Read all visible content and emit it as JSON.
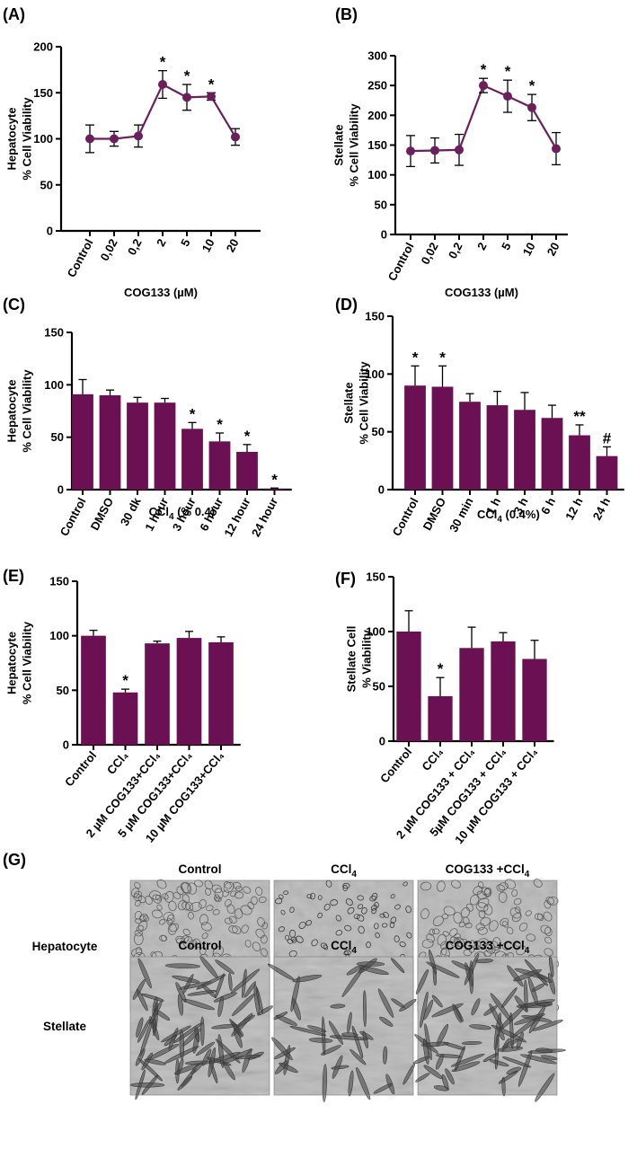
{
  "colors": {
    "bar": "#6b1052",
    "line": "#6b1f5b"
  },
  "chart_data": [
    {
      "id": "A",
      "type": "line",
      "panel_label": "(A)",
      "title": "",
      "ylabel_lines": [
        "Hepatocyte",
        "% Cell Viability"
      ],
      "xlabel": "COG133 (µM)",
      "categories": [
        "Control",
        "0,02",
        "0,2",
        "2",
        "5",
        "10",
        "20"
      ],
      "values": [
        100,
        100,
        103,
        159,
        145,
        146,
        102
      ],
      "errors": [
        15,
        8,
        12,
        15,
        14,
        4,
        9
      ],
      "significance": [
        "",
        "",
        "",
        "*",
        "*",
        "*",
        ""
      ],
      "ylim": [
        0,
        200
      ],
      "yticks": [
        "0",
        "50",
        "100",
        "150",
        "200"
      ]
    },
    {
      "id": "B",
      "type": "line",
      "panel_label": "(B)",
      "title": "",
      "ylabel_lines": [
        "Stellate",
        "% Cell Viability"
      ],
      "xlabel": "COG133 (µM)",
      "categories": [
        "Control",
        "0,02",
        "0,2",
        "2",
        "5",
        "10",
        "20"
      ],
      "values": [
        140,
        141,
        142,
        250,
        232,
        213,
        144
      ],
      "errors": [
        26,
        21,
        26,
        12,
        27,
        22,
        27
      ],
      "significance": [
        "",
        "",
        "",
        "*",
        "*",
        "*",
        ""
      ],
      "ylim": [
        0,
        300
      ],
      "yticks": [
        "0",
        "50",
        "100",
        "150",
        "200",
        "250",
        "300"
      ]
    },
    {
      "id": "C",
      "type": "bar",
      "panel_label": "(C)",
      "title": "",
      "ylabel_lines": [
        "Hepatocyte",
        "% Cell Viability"
      ],
      "xlabel_parts": [
        "CCl",
        "4",
        " (% 0.4)"
      ],
      "categories": [
        "Control",
        "DMSO",
        "30 dk",
        "1 hour",
        "3 hour",
        "6 hour",
        "12 hour",
        "24 hour"
      ],
      "values": [
        91,
        90,
        83,
        83,
        58,
        46,
        36,
        1
      ],
      "errors": [
        14,
        5,
        5,
        4,
        6,
        8,
        7,
        0.5
      ],
      "significance": [
        "",
        "",
        "",
        "",
        "*",
        "*",
        "*",
        "*"
      ],
      "ylim": [
        0,
        150
      ],
      "yticks": [
        "0",
        "50",
        "100",
        "150"
      ]
    },
    {
      "id": "D",
      "type": "bar",
      "panel_label": "(D)",
      "title": "",
      "ylabel_lines": [
        "Stellate",
        "% Cell Viability"
      ],
      "xlabel_parts": [
        "CCl",
        "4",
        " (0.4%)"
      ],
      "categories": [
        "Control",
        "DMSO",
        "30 min",
        "1 h",
        "3 h",
        "6 h",
        "12 h",
        "24 h"
      ],
      "values": [
        90,
        89,
        76,
        73,
        69,
        62,
        47,
        29
      ],
      "errors": [
        17,
        18,
        7,
        12,
        15,
        11,
        9,
        8
      ],
      "significance": [
        "*",
        "*",
        "",
        "",
        "",
        "",
        "**",
        "#"
      ],
      "ylim": [
        0,
        150
      ],
      "yticks": [
        "0",
        "50",
        "100",
        "150"
      ]
    },
    {
      "id": "E",
      "type": "bar",
      "panel_label": "(E)",
      "title": "",
      "ylabel_lines": [
        "Hepatocyte",
        "% Cell Viability"
      ],
      "xlabel": "",
      "categories": [
        "Control",
        "CCl₄",
        "2 µM COG133+CCl₄",
        "5 µM COG133+CCl₄",
        "10 µM COG133+CCl₄"
      ],
      "values": [
        100,
        48,
        93,
        98,
        94
      ],
      "errors": [
        5,
        3,
        2,
        6,
        5
      ],
      "significance": [
        "",
        "*",
        "",
        "",
        ""
      ],
      "ylim": [
        0,
        150
      ],
      "yticks": [
        "0",
        "50",
        "100",
        "150"
      ]
    },
    {
      "id": "F",
      "type": "bar",
      "panel_label": "(F)",
      "title": "",
      "ylabel_lines": [
        "Stellate Cell",
        "% Viability"
      ],
      "xlabel": "",
      "categories": [
        "Control",
        "CCl₄",
        "2 µM COG133 + CCl₄",
        "5µM COG133 + CCl₄",
        "10 µM COG133 + CCl₄"
      ],
      "values": [
        100,
        41,
        85,
        91,
        75
      ],
      "errors": [
        19,
        17,
        19,
        8,
        17
      ],
      "significance": [
        "",
        "*",
        "",
        "",
        ""
      ],
      "ylim": [
        0,
        150
      ],
      "yticks": [
        "0",
        "50",
        "100",
        "150"
      ]
    }
  ],
  "micrographs": {
    "panel_label": "(G)",
    "columns": [
      "Control",
      "CCl₄",
      "COG133 +CCl₄"
    ],
    "rows": [
      "Hepatocyte",
      "Stellate"
    ]
  }
}
